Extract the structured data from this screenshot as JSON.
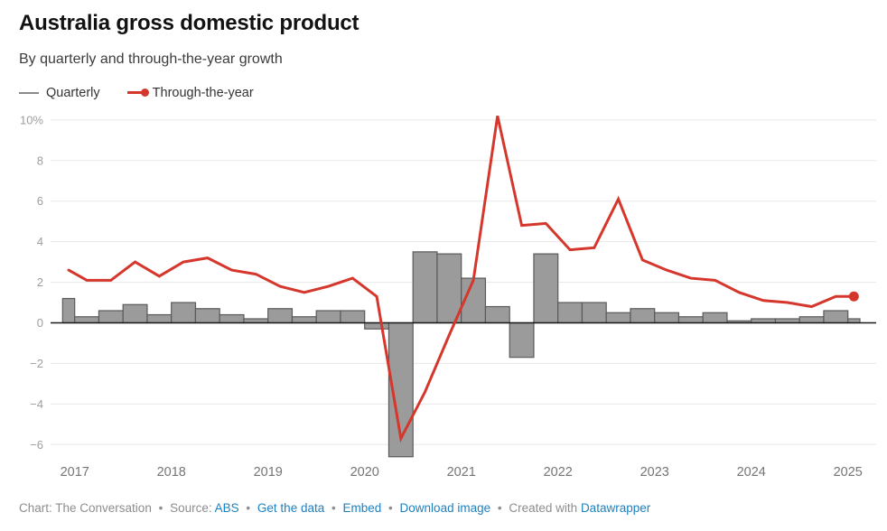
{
  "header": {
    "title": "Australia gross domestic product",
    "subtitle": "By quarterly and through-the-year growth"
  },
  "legend": {
    "items": [
      {
        "label": "Quarterly",
        "color": "#8a8a8a",
        "type": "line"
      },
      {
        "label": "Through-the-year",
        "color": "#d5372c",
        "type": "line-dot"
      }
    ]
  },
  "chart_data": {
    "type": "bar",
    "title": "Australia gross domestic product",
    "subtitle": "By quarterly and through-the-year growth",
    "x": [
      "Q4 2016",
      "Q1 2017",
      "Q2 2017",
      "Q3 2017",
      "Q4 2017",
      "Q1 2018",
      "Q2 2018",
      "Q3 2018",
      "Q4 2018",
      "Q1 2019",
      "Q2 2019",
      "Q3 2019",
      "Q4 2019",
      "Q1 2020",
      "Q2 2020",
      "Q3 2020",
      "Q4 2020",
      "Q1 2021",
      "Q2 2021",
      "Q3 2021",
      "Q4 2021",
      "Q1 2022",
      "Q2 2022",
      "Q3 2022",
      "Q4 2022",
      "Q1 2023",
      "Q2 2023",
      "Q3 2023",
      "Q4 2023",
      "Q1 2024",
      "Q2 2024",
      "Q3 2024",
      "Q4 2024",
      "Q1 2025"
    ],
    "series": [
      {
        "name": "Quarterly",
        "type": "bar",
        "color": "#9b9b9b",
        "values": [
          1.2,
          0.3,
          0.6,
          0.9,
          0.4,
          1.0,
          0.7,
          0.4,
          0.2,
          0.7,
          0.3,
          0.6,
          0.6,
          -0.3,
          -6.6,
          3.5,
          3.4,
          2.2,
          0.8,
          -1.7,
          3.4,
          1.0,
          1.0,
          0.5,
          0.7,
          0.5,
          0.3,
          0.5,
          0.1,
          0.2,
          0.2,
          0.3,
          0.6,
          0.2
        ]
      },
      {
        "name": "Through-the-year",
        "type": "line",
        "color": "#d5372c",
        "values": [
          2.6,
          2.1,
          2.1,
          3.0,
          2.3,
          3.0,
          3.2,
          2.6,
          2.4,
          1.8,
          1.5,
          1.8,
          2.2,
          1.3,
          -5.7,
          -3.4,
          -0.6,
          2.1,
          10.2,
          4.8,
          4.9,
          3.6,
          3.7,
          6.1,
          3.1,
          2.6,
          2.2,
          2.1,
          1.5,
          1.1,
          1.0,
          0.8,
          1.3,
          1.3
        ]
      }
    ],
    "ylim": [
      -7.2,
      10.4
    ],
    "yticks": [
      10,
      8,
      6,
      4,
      2,
      0,
      -2,
      -4,
      -6
    ],
    "ytick_top_label": "10%",
    "xticks": [
      "2017",
      "2018",
      "2019",
      "2020",
      "2021",
      "2022",
      "2023",
      "2024",
      "2025"
    ],
    "grid": true,
    "legend_position": "top"
  },
  "colors": {
    "bar_fill": "#9b9b9b",
    "bar_stroke": "#5a5a5a",
    "line_red": "#d5372c",
    "grid": "#e8e8e8",
    "zero_line": "#1a1a1a",
    "ytick_label": "#9e9e9e",
    "xtick_label": "#757575",
    "footer_text": "#8d8d8d",
    "link": "#1d81c0"
  },
  "footer": {
    "credit": "Chart: The Conversation",
    "separator": "•",
    "source_label": "Source:",
    "source_name": "ABS",
    "link_get_data": "Get the data",
    "link_embed": "Embed",
    "link_download": "Download image",
    "created_with": "Created with",
    "tool_name": "Datawrapper"
  }
}
